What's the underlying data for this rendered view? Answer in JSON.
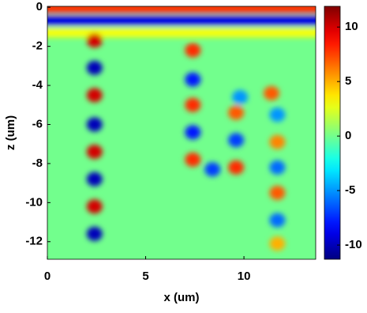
{
  "chart_data": {
    "type": "heatmap",
    "xlabel": "x (um)",
    "ylabel": "z (um)",
    "xlim": [
      0,
      13.65
    ],
    "ylim": [
      -12.9,
      0.05
    ],
    "xticks": [
      0,
      5,
      10
    ],
    "yticks": [
      0,
      -2,
      -4,
      -6,
      -8,
      -10,
      -12
    ],
    "clim": [
      -11.3,
      11.9
    ],
    "cticks": [
      10,
      5,
      0,
      -5,
      -10
    ],
    "colormap": "jet",
    "bands": {
      "y": [
        -0.05,
        -0.7,
        -1.3
      ],
      "values": [
        8,
        -9,
        3
      ]
    },
    "spots": {
      "x": [
        2.4,
        2.4,
        2.4,
        2.4,
        2.4,
        2.4,
        2.4,
        2.4,
        7.4,
        7.4,
        7.4,
        7.4,
        7.4,
        8.4,
        9.8,
        9.6,
        9.6,
        9.6,
        11.4,
        11.7,
        11.7,
        11.7,
        11.7,
        11.7,
        11.7
      ],
      "y": [
        -1.7,
        -3.1,
        -4.5,
        -6.0,
        -7.4,
        -8.8,
        -10.2,
        -11.6,
        -2.2,
        -3.7,
        -5.0,
        -6.4,
        -7.8,
        -8.3,
        -4.6,
        -5.4,
        -6.8,
        -8.2,
        -4.4,
        -5.5,
        -6.9,
        -8.2,
        -9.5,
        -10.9,
        -12.1
      ],
      "values": [
        10,
        -10,
        10,
        -10,
        10,
        -10,
        10,
        -10,
        8,
        -8,
        8,
        -8,
        8,
        -7,
        -5,
        7,
        -7,
        8,
        7,
        -5,
        6,
        -6,
        7,
        -6,
        5
      ]
    }
  }
}
